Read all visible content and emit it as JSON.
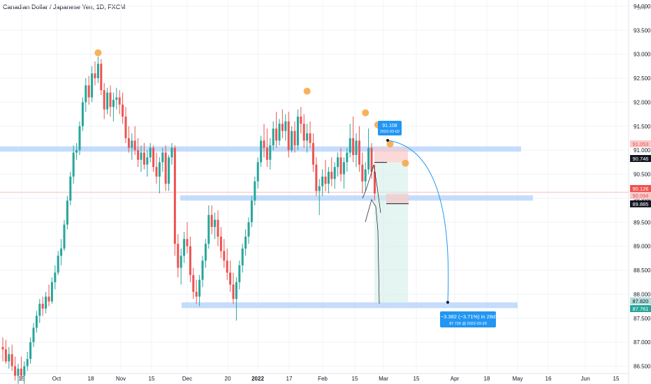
{
  "header": {
    "title": "Canadian Dollar / Japanese Yen, 1D, FXCM"
  },
  "colors": {
    "up": "#26a69a",
    "down": "#ef5350",
    "zone": "#bbd6fb",
    "target": "#2196f3",
    "grid": "#f0f3fa",
    "text": "#131722",
    "swing_marker": "#f7a440"
  },
  "chart_data": {
    "type": "candlestick",
    "title": "Canadian Dollar / Japanese Yen, 1D, FXCM",
    "currency_label": "JPY",
    "ylim": [
      86.35,
      94.0
    ],
    "grid": true,
    "y_ticks": [
      "94.000",
      "93.500",
      "93.000",
      "92.500",
      "92.000",
      "91.500",
      "91.000",
      "90.500",
      "90.000",
      "89.500",
      "89.000",
      "88.500",
      "88.000",
      "87.500",
      "87.000",
      "86.500"
    ],
    "x_ticks": [
      "15",
      "Oct",
      "18",
      "Nov",
      "15",
      "Dec",
      "20",
      "2022",
      "17",
      "Feb",
      "15",
      "Mar",
      "15",
      "Apr",
      "18",
      "May",
      "16",
      "Jun",
      "15"
    ],
    "price_labels": [
      {
        "text": "91.053",
        "value": 91.053,
        "style": "down-light"
      },
      {
        "text": "90.746",
        "value": 90.746,
        "style": "dark"
      },
      {
        "text": "90.126",
        "value": 90.126,
        "style": "down"
      },
      {
        "text": "90.094",
        "value": 90.094,
        "style": "down-light"
      },
      {
        "text": "89.885",
        "value": 89.885,
        "style": "dark"
      },
      {
        "text": "87.820",
        "value": 87.82,
        "style": "up-light"
      },
      {
        "text": "87.761",
        "value": 87.761,
        "style": "up"
      }
    ],
    "zones": [
      {
        "y1": 91.08,
        "y2": 90.97
      },
      {
        "y1": 90.06,
        "y2": 89.95
      },
      {
        "y1": 87.83,
        "y2": 87.71
      }
    ],
    "horizontal_line": 90.126,
    "callout_high": {
      "price": "91.108",
      "date": "2022-03-02"
    },
    "callout_target": {
      "change": "−3.382 (−3.71%) in 28d",
      "detail": "87.726 @ 2022-03-29"
    },
    "position": {
      "entry": 90.746,
      "stop": 91.053,
      "target": 87.82
    },
    "short_position_2": {
      "entry": 89.885,
      "stop": 90.094
    },
    "candles": [
      [
        86.9,
        87.1,
        86.6,
        86.85
      ],
      [
        86.85,
        87.05,
        86.55,
        86.6
      ],
      [
        86.6,
        86.9,
        86.45,
        86.75
      ],
      [
        86.75,
        86.95,
        86.4,
        86.5
      ],
      [
        86.5,
        86.7,
        86.2,
        86.3
      ],
      [
        86.3,
        86.55,
        86.1,
        86.45
      ],
      [
        86.45,
        86.7,
        86.2,
        86.3
      ],
      [
        86.3,
        86.6,
        86.1,
        86.5
      ],
      [
        86.5,
        86.8,
        86.4,
        86.65
      ],
      [
        86.65,
        87.1,
        86.55,
        87.0
      ],
      [
        87.0,
        87.4,
        86.9,
        87.3
      ],
      [
        87.3,
        87.65,
        87.2,
        87.55
      ],
      [
        87.55,
        87.9,
        87.4,
        87.8
      ],
      [
        87.8,
        87.95,
        87.55,
        87.7
      ],
      [
        87.7,
        88.05,
        87.6,
        87.95
      ],
      [
        87.95,
        88.2,
        87.75,
        87.85
      ],
      [
        87.85,
        88.35,
        87.8,
        88.25
      ],
      [
        88.25,
        88.6,
        88.1,
        88.45
      ],
      [
        88.45,
        88.9,
        88.4,
        88.8
      ],
      [
        88.8,
        89.15,
        88.6,
        88.95
      ],
      [
        88.95,
        89.55,
        88.9,
        89.45
      ],
      [
        89.45,
        90.05,
        89.35,
        89.95
      ],
      [
        89.95,
        90.55,
        89.85,
        90.45
      ],
      [
        90.45,
        91.1,
        90.3,
        90.95
      ],
      [
        90.95,
        91.15,
        90.8,
        91.0
      ],
      [
        91.0,
        91.6,
        90.9,
        91.5
      ],
      [
        91.5,
        92.1,
        91.4,
        92.0
      ],
      [
        92.0,
        92.5,
        91.8,
        92.35
      ],
      [
        92.35,
        92.55,
        91.95,
        92.1
      ],
      [
        92.1,
        92.75,
        92.0,
        92.6
      ],
      [
        92.6,
        92.85,
        92.35,
        92.5
      ],
      [
        92.5,
        92.95,
        92.4,
        92.8
      ],
      [
        92.8,
        92.9,
        92.15,
        92.25
      ],
      [
        92.25,
        92.4,
        91.65,
        91.85
      ],
      [
        91.85,
        92.3,
        91.75,
        92.2
      ],
      [
        92.2,
        92.35,
        91.7,
        91.9
      ],
      [
        91.9,
        92.2,
        91.6,
        92.05
      ],
      [
        92.05,
        92.3,
        91.85,
        92.1
      ],
      [
        92.1,
        92.25,
        91.75,
        91.95
      ],
      [
        91.95,
        92.2,
        91.55,
        91.7
      ],
      [
        91.7,
        91.9,
        91.15,
        91.25
      ],
      [
        91.25,
        91.5,
        90.95,
        91.05
      ],
      [
        91.05,
        91.35,
        90.8,
        91.2
      ],
      [
        91.2,
        91.5,
        90.9,
        91.0
      ],
      [
        91.0,
        91.25,
        90.65,
        90.8
      ],
      [
        90.8,
        91.1,
        90.55,
        90.95
      ],
      [
        90.95,
        91.15,
        90.6,
        90.7
      ],
      [
        90.7,
        91.0,
        90.45,
        90.85
      ],
      [
        90.85,
        91.15,
        90.75,
        91.05
      ],
      [
        91.05,
        91.1,
        90.55,
        90.65
      ],
      [
        90.65,
        90.95,
        90.3,
        90.45
      ],
      [
        90.45,
        90.85,
        90.1,
        90.75
      ],
      [
        90.75,
        91.05,
        90.55,
        90.95
      ],
      [
        90.95,
        91.1,
        90.15,
        90.3
      ],
      [
        90.3,
        90.9,
        90.15,
        90.85
      ],
      [
        90.85,
        91.15,
        90.7,
        91.05
      ],
      [
        91.05,
        91.1,
        88.8,
        89.05
      ],
      [
        89.05,
        89.25,
        88.35,
        88.55
      ],
      [
        88.55,
        88.95,
        88.2,
        88.8
      ],
      [
        88.8,
        89.3,
        88.65,
        89.15
      ],
      [
        89.15,
        89.5,
        88.85,
        89.0
      ],
      [
        89.0,
        89.2,
        88.25,
        88.4
      ],
      [
        88.4,
        88.55,
        87.9,
        88.05
      ],
      [
        88.05,
        88.3,
        87.8,
        87.95
      ],
      [
        87.95,
        88.4,
        87.75,
        88.3
      ],
      [
        88.3,
        88.8,
        88.15,
        88.7
      ],
      [
        88.7,
        89.15,
        88.55,
        89.05
      ],
      [
        89.05,
        89.85,
        88.95,
        89.65
      ],
      [
        89.65,
        89.85,
        89.25,
        89.4
      ],
      [
        89.4,
        89.7,
        89.15,
        89.55
      ],
      [
        89.55,
        89.75,
        89.0,
        89.2
      ],
      [
        89.2,
        89.4,
        88.75,
        88.9
      ],
      [
        88.9,
        89.15,
        88.55,
        88.7
      ],
      [
        88.7,
        88.95,
        88.3,
        88.45
      ],
      [
        88.45,
        88.7,
        88.05,
        88.2
      ],
      [
        88.2,
        88.45,
        87.8,
        87.9
      ],
      [
        87.9,
        88.35,
        87.45,
        88.25
      ],
      [
        88.25,
        88.7,
        88.1,
        88.6
      ],
      [
        88.6,
        89.05,
        88.45,
        88.95
      ],
      [
        88.95,
        89.35,
        88.8,
        89.2
      ],
      [
        89.2,
        89.6,
        89.05,
        89.5
      ],
      [
        89.5,
        90.05,
        89.4,
        89.95
      ],
      [
        89.95,
        90.45,
        89.85,
        90.35
      ],
      [
        90.35,
        90.85,
        90.2,
        90.75
      ],
      [
        90.75,
        91.3,
        90.65,
        91.2
      ],
      [
        91.2,
        91.55,
        90.85,
        91.05
      ],
      [
        91.05,
        91.45,
        90.65,
        90.8
      ],
      [
        90.8,
        91.25,
        90.6,
        91.1
      ],
      [
        91.1,
        91.6,
        91.0,
        91.45
      ],
      [
        91.45,
        91.8,
        91.05,
        91.2
      ],
      [
        91.2,
        91.65,
        91.1,
        91.55
      ],
      [
        91.55,
        91.85,
        91.25,
        91.4
      ],
      [
        91.4,
        91.75,
        91.2,
        91.6
      ],
      [
        91.6,
        91.8,
        90.85,
        91.0
      ],
      [
        91.0,
        91.5,
        90.95,
        91.4
      ],
      [
        91.4,
        91.6,
        90.95,
        91.1
      ],
      [
        91.1,
        91.85,
        91.0,
        91.7
      ],
      [
        91.7,
        91.9,
        91.35,
        91.55
      ],
      [
        91.55,
        91.75,
        91.05,
        91.2
      ],
      [
        91.2,
        91.55,
        90.95,
        91.35
      ],
      [
        91.35,
        91.6,
        91.05,
        91.15
      ],
      [
        91.15,
        91.35,
        90.55,
        90.7
      ],
      [
        90.7,
        90.85,
        90.05,
        90.15
      ],
      [
        90.15,
        90.4,
        89.65,
        90.25
      ],
      [
        90.25,
        90.6,
        90.05,
        90.45
      ],
      [
        90.45,
        90.8,
        90.15,
        90.3
      ],
      [
        90.3,
        90.65,
        90.1,
        90.55
      ],
      [
        90.55,
        90.85,
        90.25,
        90.4
      ],
      [
        90.4,
        90.75,
        90.2,
        90.65
      ],
      [
        90.65,
        90.95,
        90.45,
        90.85
      ],
      [
        90.85,
        91.05,
        90.35,
        90.5
      ],
      [
        90.5,
        90.85,
        90.2,
        90.75
      ],
      [
        90.75,
        91.05,
        90.55,
        90.95
      ],
      [
        90.95,
        91.55,
        90.85,
        91.25
      ],
      [
        91.25,
        91.7,
        90.75,
        90.9
      ],
      [
        90.9,
        91.35,
        90.65,
        91.2
      ],
      [
        91.2,
        91.5,
        90.55,
        90.7
      ],
      [
        90.7,
        90.95,
        90.1,
        90.35
      ],
      [
        90.35,
        90.75,
        90.15,
        90.6
      ],
      [
        90.6,
        91.45,
        90.5,
        91.05
      ],
      [
        91.05,
        91.15,
        90.4,
        90.55
      ],
      [
        90.55,
        90.7,
        89.95,
        90.1
      ]
    ]
  }
}
